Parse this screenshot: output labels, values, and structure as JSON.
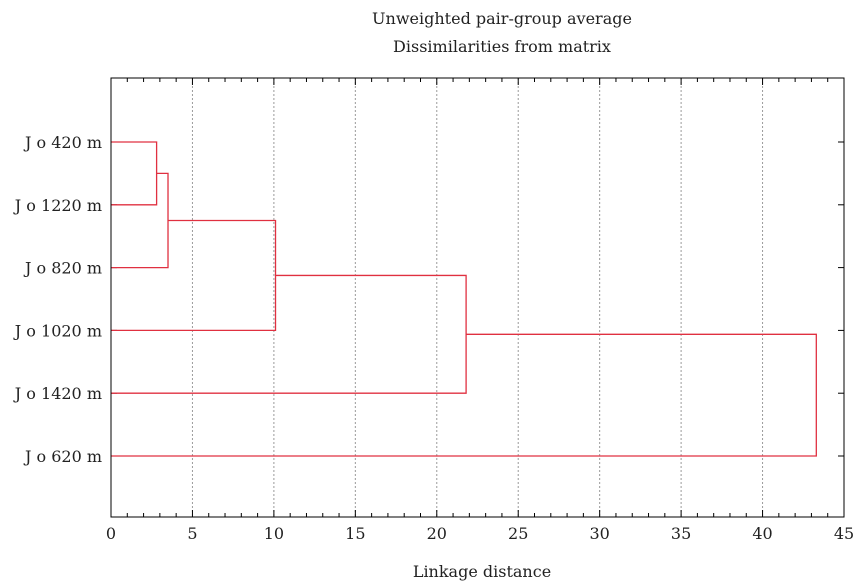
{
  "chart_data": {
    "type": "dendrogram",
    "title": "Unweighted pair-group average",
    "subtitle": "Dissimilarities from matrix",
    "xlabel": "Linkage distance",
    "ylabel": "",
    "xlim": [
      0,
      45
    ],
    "xticks": [
      0,
      5,
      10,
      15,
      20,
      25,
      30,
      35,
      40,
      45
    ],
    "grid": "vertical dashed",
    "leaves": [
      "J o 420 m",
      "J o 1220 m",
      "J o 820 m",
      "J o 1020 m",
      "J o 1420 m",
      "J o 620 m"
    ],
    "merges": [
      {
        "left": "J o 420 m",
        "right": "J o 1220 m",
        "distance": 2.8
      },
      {
        "left": "cluster-1",
        "right": "J o 820 m",
        "distance": 3.5
      },
      {
        "left": "cluster-2",
        "right": "J o 1020 m",
        "distance": 10.1
      },
      {
        "left": "cluster-3",
        "right": "J o 1420 m",
        "distance": 21.8
      },
      {
        "left": "cluster-4",
        "right": "J o 620 m",
        "distance": 43.3
      }
    ],
    "colors": {
      "link": "#e03040",
      "grid": "#9a9a9a",
      "frame": "#000000"
    }
  }
}
